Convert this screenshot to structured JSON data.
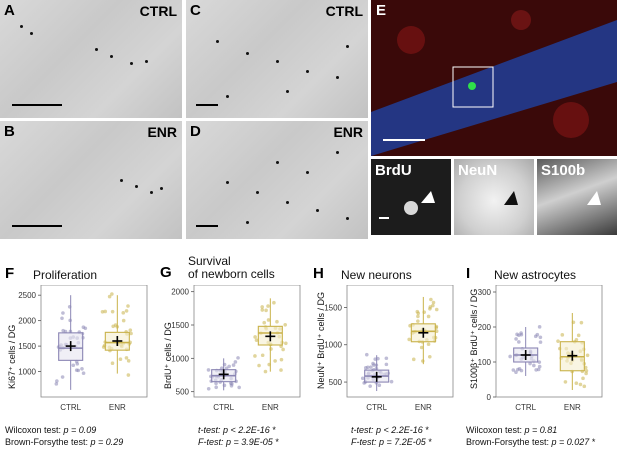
{
  "panels": {
    "A": {
      "letter": "A",
      "label": "CTRL"
    },
    "B": {
      "letter": "B",
      "label": "ENR"
    },
    "C": {
      "letter": "C",
      "label": "CTRL"
    },
    "D": {
      "letter": "D",
      "label": "ENR"
    },
    "E": {
      "letter": "E",
      "channels": [
        "BrdU",
        "NeuN",
        "S100b"
      ]
    }
  },
  "plots": [
    {
      "letter": "F",
      "title_lines": [
        "Proliferation"
      ],
      "ylabel": "Ki67⁺ cells / DG",
      "categories": [
        "CTRL",
        "ENR"
      ],
      "ylim": [
        500,
        2700
      ],
      "yticks": [
        1000,
        1500,
        2000,
        2500
      ],
      "box": {
        "CTRL": {
          "q1": 1220,
          "median": 1460,
          "q3": 1760,
          "wlow": 640,
          "whigh": 2500,
          "mean": 1500
        },
        "ENR": {
          "q1": 1420,
          "median": 1570,
          "q3": 1770,
          "wlow": 960,
          "whigh": 2500,
          "mean": 1600
        }
      },
      "stats": [
        {
          "label": "Wilcoxon test: ",
          "p": "p = 0.09",
          "star": ""
        },
        {
          "label": "Brown-Forsythe test: ",
          "p": "p = 0.29",
          "star": ""
        }
      ]
    },
    {
      "letter": "G",
      "title_lines": [
        "Survival",
        "of newborn cells"
      ],
      "ylabel": "BrdU⁺ cells / DG",
      "categories": [
        "CTRL",
        "ENR"
      ],
      "ylim": [
        420,
        2100
      ],
      "yticks": [
        500,
        1000,
        1500,
        2000
      ],
      "box": {
        "CTRL": {
          "q1": 650,
          "median": 740,
          "q3": 830,
          "wlow": 520,
          "whigh": 1000,
          "mean": 760
        },
        "ENR": {
          "q1": 1200,
          "median": 1380,
          "q3": 1480,
          "wlow": 800,
          "whigh": 1900,
          "mean": 1330
        }
      },
      "stats": [
        {
          "label": "t-test: ",
          "p": "p < 2.2E-16",
          "star": "*"
        },
        {
          "label": "F-test: ",
          "p": "p = 3.9E-05",
          "star": "*"
        }
      ]
    },
    {
      "letter": "H",
      "title_lines": [
        "New neurons"
      ],
      "ylabel": "NeuN⁺ BrdU⁺ cells / DG",
      "categories": [
        "CTRL",
        "ENR"
      ],
      "ylim": [
        300,
        1800
      ],
      "yticks": [
        500,
        1000,
        1500
      ],
      "box": {
        "CTRL": {
          "q1": 500,
          "median": 580,
          "q3": 660,
          "wlow": 380,
          "whigh": 860,
          "mean": 570
        },
        "ENR": {
          "q1": 1040,
          "median": 1180,
          "q3": 1280,
          "wlow": 740,
          "whigh": 1640,
          "mean": 1160
        }
      },
      "stats": [
        {
          "label": "t-test: ",
          "p": "p < 2.2E-16",
          "star": "*"
        },
        {
          "label": "F-test: ",
          "p": "p = 7.2E-05",
          "star": "*"
        }
      ]
    },
    {
      "letter": "I",
      "title_lines": [
        "New astrocytes"
      ],
      "ylabel": "S100β⁺ BrdU⁺ cells / DG",
      "categories": [
        "CTRL",
        "ENR"
      ],
      "ylim": [
        0,
        320
      ],
      "yticks": [
        0,
        100,
        200,
        300
      ],
      "box": {
        "CTRL": {
          "q1": 100,
          "median": 120,
          "q3": 140,
          "wlow": 60,
          "whigh": 200,
          "mean": 120
        },
        "ENR": {
          "q1": 75,
          "median": 115,
          "q3": 158,
          "wlow": 20,
          "whigh": 240,
          "mean": 118
        }
      },
      "stats": [
        {
          "label": "Wilcoxon test: ",
          "p": "p = 0.81",
          "star": ""
        },
        {
          "label": "Brown-Forsythe test: ",
          "p": "p = 0.027",
          "star": "*"
        }
      ]
    }
  ],
  "colors": {
    "ctrl": "#8b86b4",
    "enr": "#c9b24a",
    "ctrl_fill": "#e6e4f0",
    "enr_fill": "#f5efcf"
  }
}
